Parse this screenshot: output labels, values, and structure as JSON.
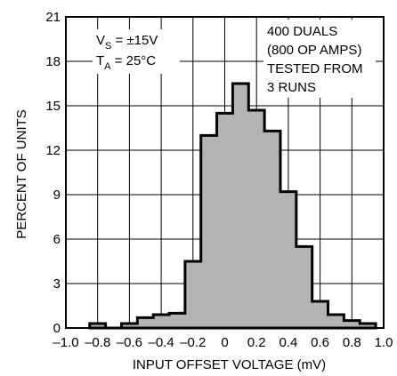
{
  "chart_data": {
    "type": "histogram",
    "xlabel": "INPUT OFFSET VOLTAGE (mV)",
    "ylabel": "PERCENT OF UNITS",
    "xlim": [
      -1.0,
      1.0
    ],
    "ylim": [
      0,
      21
    ],
    "x_ticks": [
      -1.0,
      -0.8,
      -0.6,
      -0.4,
      -0.2,
      0,
      0.2,
      0.4,
      0.6,
      0.8,
      1.0
    ],
    "x_tick_labels": [
      "–1.0",
      "–0.8",
      "–0.6",
      "–0.4",
      "–0.2",
      "0",
      "0.2",
      "0.4",
      "0.6",
      "0.8",
      "1.0"
    ],
    "y_ticks": [
      0,
      3,
      6,
      9,
      12,
      15,
      18,
      21
    ],
    "y_tick_labels": [
      "0",
      "3",
      "6",
      "9",
      "12",
      "15",
      "18",
      "21"
    ],
    "grid": true,
    "bin_width": 0.1,
    "bins": [
      {
        "start": -0.85,
        "end": -0.75,
        "value": 0.3
      },
      {
        "start": -0.75,
        "end": -0.65,
        "value": 0
      },
      {
        "start": -0.65,
        "end": -0.55,
        "value": 0.3
      },
      {
        "start": -0.55,
        "end": -0.45,
        "value": 0.7
      },
      {
        "start": -0.45,
        "end": -0.35,
        "value": 0.9
      },
      {
        "start": -0.35,
        "end": -0.25,
        "value": 1.0
      },
      {
        "start": -0.25,
        "end": -0.15,
        "value": 4.5
      },
      {
        "start": -0.15,
        "end": -0.05,
        "value": 13.0
      },
      {
        "start": -0.05,
        "end": 0.05,
        "value": 14.5
      },
      {
        "start": 0.05,
        "end": 0.15,
        "value": 16.5
      },
      {
        "start": 0.15,
        "end": 0.25,
        "value": 14.7
      },
      {
        "start": 0.25,
        "end": 0.35,
        "value": 13.3
      },
      {
        "start": 0.35,
        "end": 0.45,
        "value": 9.2
      },
      {
        "start": 0.45,
        "end": 0.55,
        "value": 5.5
      },
      {
        "start": 0.55,
        "end": 0.65,
        "value": 1.8
      },
      {
        "start": 0.65,
        "end": 0.75,
        "value": 0.9
      },
      {
        "start": 0.75,
        "end": 0.85,
        "value": 0.5
      },
      {
        "start": 0.85,
        "end": 0.95,
        "value": 0.3
      }
    ],
    "annotations": {
      "vs_main": "V",
      "vs_sub": "S",
      "vs_rest": " = ±15V",
      "ta_main": "T",
      "ta_sub": "A",
      "ta_rest": " = 25°C",
      "note_lines": [
        "400 DUALS",
        "(800 OP AMPS)",
        "TESTED FROM",
        "3 RUNS"
      ]
    },
    "colors": {
      "bar_fill": "#b3b3b3",
      "bar_stroke": "#000000",
      "grid": "#000000",
      "frame": "#000000"
    }
  }
}
